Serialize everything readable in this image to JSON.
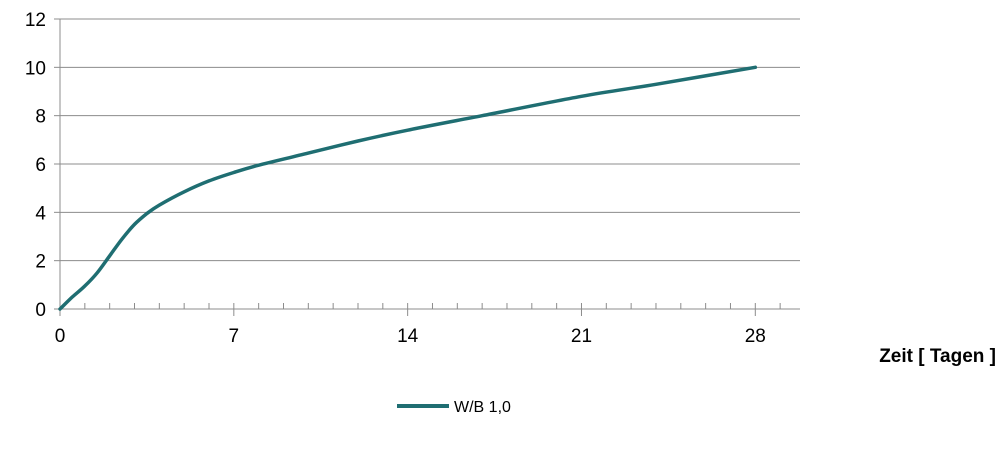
{
  "chart_data": {
    "type": "line",
    "title": "",
    "xlabel": "Zeit [ Tagen ]",
    "ylabel": "",
    "xlim": [
      0,
      29.8
    ],
    "ylim": [
      0,
      12
    ],
    "x_ticks": [
      0,
      7,
      14,
      21,
      28
    ],
    "x_minor_ticks": [
      1,
      2,
      3,
      4,
      5,
      6,
      8,
      9,
      10,
      11,
      12,
      13,
      15,
      16,
      17,
      18,
      19,
      20,
      22,
      23,
      24,
      25,
      26,
      27,
      29
    ],
    "y_ticks": [
      0,
      2,
      4,
      6,
      8,
      10,
      12
    ],
    "grid": "horizontal",
    "legend_position": "bottom",
    "series": [
      {
        "name": "W/B 1,0",
        "color": "#1F6E72",
        "x": [
          0,
          0.5,
          1,
          1.5,
          2,
          2.5,
          3,
          3.5,
          4,
          5,
          6,
          7,
          8,
          10,
          12,
          14,
          17,
          21,
          24,
          28
        ],
        "y": [
          0,
          0.5,
          0.95,
          1.5,
          2.2,
          2.9,
          3.5,
          3.95,
          4.3,
          4.85,
          5.3,
          5.65,
          5.95,
          6.45,
          6.95,
          7.4,
          8.0,
          8.8,
          9.3,
          10.0
        ]
      }
    ]
  }
}
